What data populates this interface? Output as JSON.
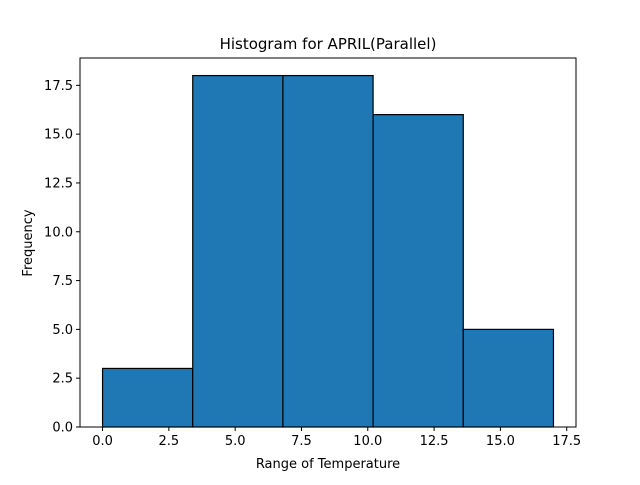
{
  "chart_data": {
    "type": "bar",
    "title": "Histogram for APRIL(Parallel)",
    "xlabel": "Range of Temperature",
    "ylabel": "Frequency",
    "bin_edges": [
      0.0,
      3.4,
      6.8,
      10.2,
      13.6,
      17.0
    ],
    "values": [
      3,
      18,
      18,
      16,
      5
    ],
    "xlim": [
      -0.85,
      17.85
    ],
    "ylim": [
      0,
      18.9
    ],
    "x_ticks": [
      0.0,
      2.5,
      5.0,
      7.5,
      10.0,
      12.5,
      15.0,
      17.5
    ],
    "x_tick_labels": [
      "0.0",
      "2.5",
      "5.0",
      "7.5",
      "10.0",
      "12.5",
      "15.0",
      "17.5"
    ],
    "y_ticks": [
      0.0,
      2.5,
      5.0,
      7.5,
      10.0,
      12.5,
      15.0,
      17.5
    ],
    "y_tick_labels": [
      "0.0",
      "2.5",
      "5.0",
      "7.5",
      "10.0",
      "12.5",
      "15.0",
      "17.5"
    ],
    "grid": false,
    "bar_color": "#1f77b4",
    "edge_color": "#000000"
  }
}
